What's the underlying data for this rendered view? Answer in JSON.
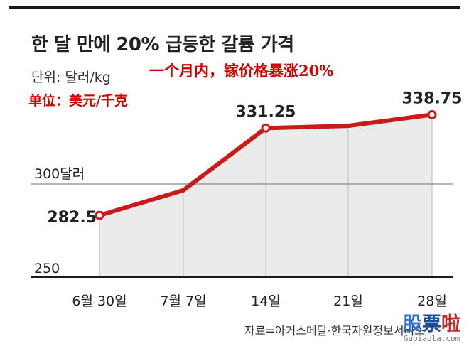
{
  "header": {
    "title": "한 달 만에 20% 급등한 갈륨 가격",
    "unit": "단위: 달러/kg",
    "cn_title": "一个月内，镓价格暴涨20%",
    "cn_unit": "单位：美元/千克"
  },
  "source": "자료=아거스메탈·한국자원정보서비스",
  "watermark": {
    "main": [
      "股",
      "票",
      "啦"
    ],
    "sub": "Gupiaola.com"
  },
  "colors": {
    "line": "#cc1a1a",
    "area": "#ebebeb",
    "grid": "#8a8a8a",
    "text": "#222222"
  },
  "chart_data": {
    "type": "area",
    "categories": [
      "6월 30일",
      "7월 7일",
      "14일",
      "21일",
      "28일"
    ],
    "series": [
      {
        "values": [
          282.5,
          296.5,
          331.25,
          332.5,
          338.75
        ]
      }
    ],
    "data_labels": [
      "282.5",
      "",
      "331.25",
      "",
      "338.75"
    ],
    "ytick_labels": {
      "250": "250",
      "300": "300달러"
    },
    "ylim": [
      248,
      352
    ],
    "grid": true
  }
}
